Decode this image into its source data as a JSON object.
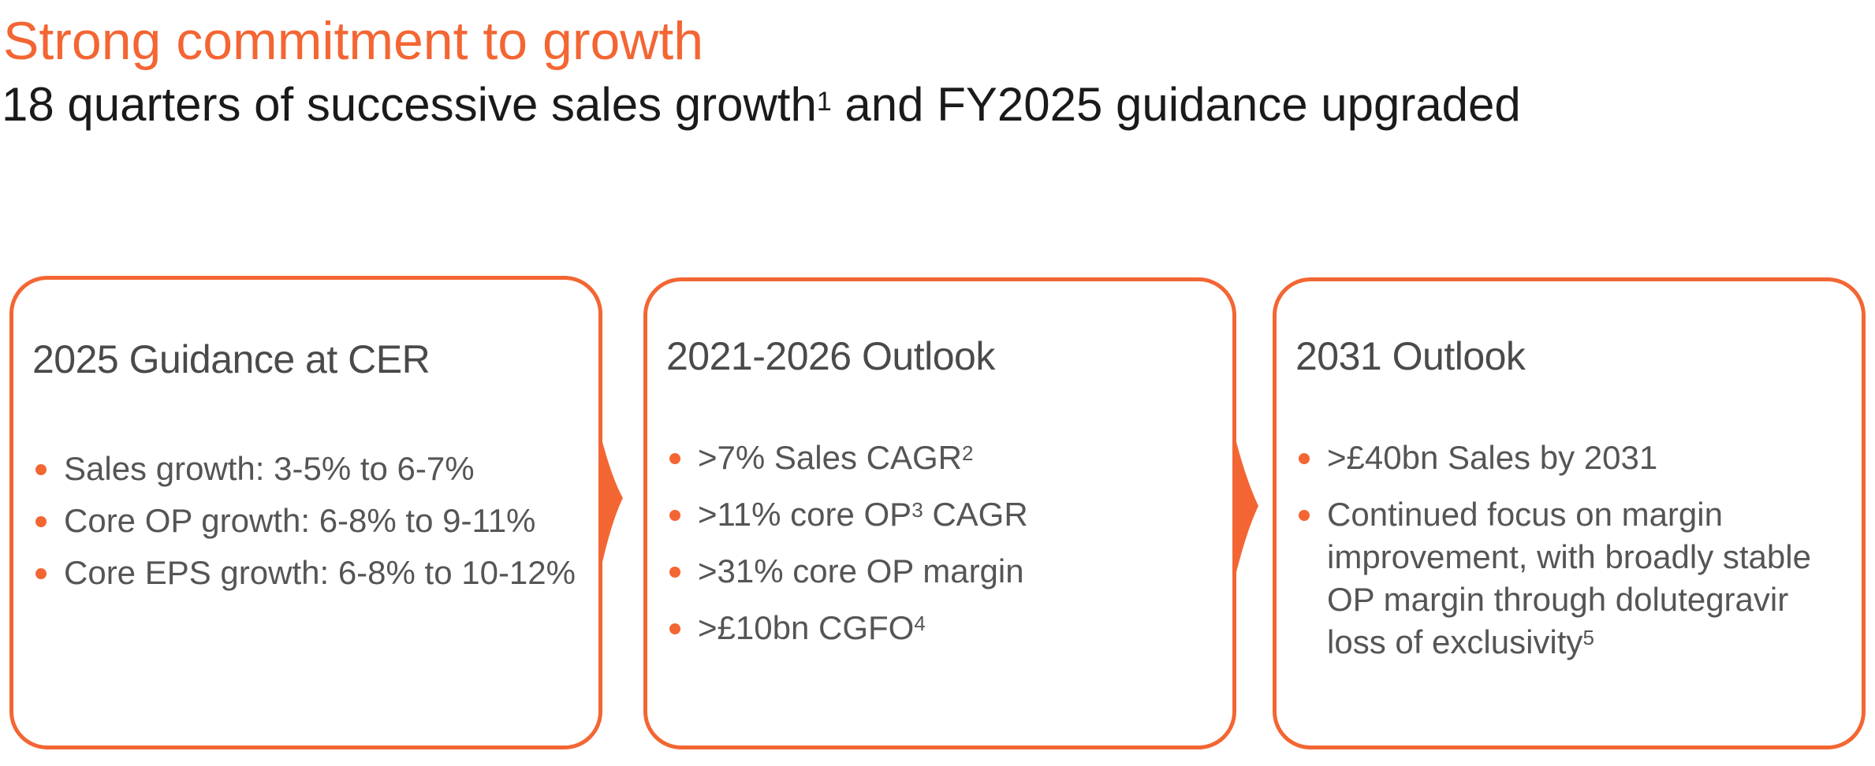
{
  "header": {
    "title": "Strong commitment to growth",
    "subtitle_prefix": "18 quarters of successive sales growth",
    "subtitle_sup": "1",
    "subtitle_suffix": " and FY2025 guidance upgraded"
  },
  "colors": {
    "accent": "#F36633",
    "heading": "#4a4a4a",
    "body_text": "#555555",
    "subtitle": "#1a1a1a"
  },
  "cards": [
    {
      "heading": "2025 Guidance at CER",
      "bullets": [
        {
          "text": "Sales growth: 3-5% to 6-7%"
        },
        {
          "text": "Core OP growth: 6-8% to 9-11%"
        },
        {
          "text": "Core EPS growth: 6-8% to 10-12%"
        }
      ]
    },
    {
      "heading": "2021-2026 Outlook",
      "bullets": [
        {
          "pre": ">7% Sales CAGR",
          "sup": "2",
          "post": ""
        },
        {
          "pre": ">11% core OP",
          "sup": "3",
          "post": " CAGR"
        },
        {
          "pre": ">31% core OP margin",
          "sup": "",
          "post": ""
        },
        {
          "pre": ">£10bn CGFO",
          "sup": "4",
          "post": ""
        }
      ]
    },
    {
      "heading": "2031 Outlook",
      "bullets": [
        {
          "pre": ">£40bn Sales by 2031",
          "sup": "",
          "post": ""
        },
        {
          "pre": "Continued focus on margin improvement, with broadly stable OP margin through dolutegravir loss of exclusivity",
          "sup": "5",
          "post": ""
        }
      ]
    }
  ]
}
